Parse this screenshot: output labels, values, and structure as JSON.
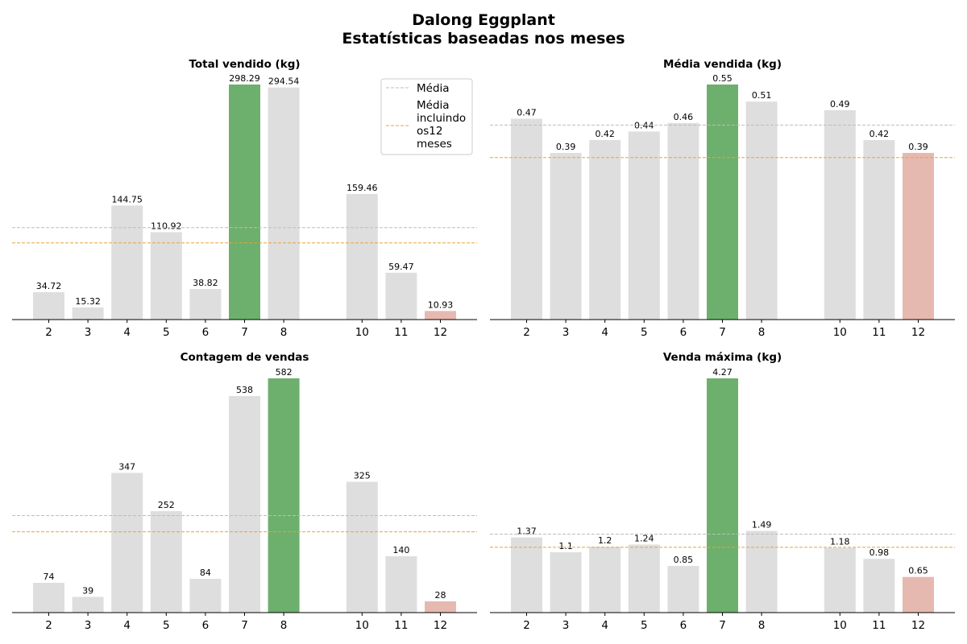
{
  "figure": {
    "title_line1": "Dalong Eggplant",
    "title_line2": "Estatísticas baseadas nos meses"
  },
  "legend": {
    "mean_label": "Média",
    "mean_all_label_lines": [
      "Média",
      "incluindo",
      "os12",
      "meses"
    ]
  },
  "colors": {
    "default_bar": "#dedede",
    "max_bar": "#6daf6d",
    "current_bar": "#e6b9b0",
    "mean_line": "#bdbdbd",
    "mean_all_line": "#e8a33a"
  },
  "chart_data": [
    {
      "type": "bar",
      "title": "Total vendido (kg)",
      "categories": [
        "2",
        "3",
        "4",
        "5",
        "6",
        "7",
        "8",
        "10",
        "11",
        "12"
      ],
      "values": [
        34.72,
        15.32,
        144.75,
        110.92,
        38.82,
        298.29,
        294.54,
        159.46,
        59.47,
        10.93
      ],
      "value_labels": [
        "34.72",
        "15.32",
        "144.75",
        "110.92",
        "38.82",
        "298.29",
        "294.54",
        "159.46",
        "59.47",
        "10.93"
      ],
      "highlight_max": "7",
      "highlight_current": "12",
      "mean": 116.7,
      "mean_all": 97.3,
      "ylim": [
        0,
        298.29
      ],
      "legend": "top-right"
    },
    {
      "type": "bar",
      "title": "Média vendida (kg)",
      "categories": [
        "2",
        "3",
        "4",
        "5",
        "6",
        "7",
        "8",
        "10",
        "11",
        "12"
      ],
      "values": [
        0.47,
        0.39,
        0.42,
        0.44,
        0.46,
        0.55,
        0.51,
        0.49,
        0.42,
        0.39
      ],
      "value_labels": [
        "0.47",
        "0.39",
        "0.42",
        "0.44",
        "0.46",
        "0.55",
        "0.51",
        "0.49",
        "0.42",
        "0.39"
      ],
      "highlight_max": "7",
      "highlight_current": "12",
      "mean": 0.455,
      "mean_all": 0.379,
      "ylim": [
        0,
        0.55
      ]
    },
    {
      "type": "bar",
      "title": "Contagem de vendas",
      "categories": [
        "2",
        "3",
        "4",
        "5",
        "6",
        "7",
        "8",
        "10",
        "11",
        "12"
      ],
      "values": [
        74,
        39,
        347,
        252,
        84,
        538,
        582,
        325,
        140,
        28
      ],
      "value_labels": [
        "74",
        "39",
        "347",
        "252",
        "84",
        "538",
        "582",
        "325",
        "140",
        "28"
      ],
      "highlight_max": "8",
      "highlight_current": "12",
      "mean": 240.9,
      "mean_all": 200.8,
      "ylim": [
        0,
        582
      ]
    },
    {
      "type": "bar",
      "title": "Venda máxima (kg)",
      "categories": [
        "2",
        "3",
        "4",
        "5",
        "6",
        "7",
        "8",
        "10",
        "11",
        "12"
      ],
      "values": [
        1.37,
        1.1,
        1.2,
        1.24,
        0.85,
        4.27,
        1.49,
        1.18,
        0.98,
        0.65
      ],
      "value_labels": [
        "1.37",
        "1.1",
        "1.2",
        "1.24",
        "0.85",
        "4.27",
        "1.49",
        "1.18",
        "0.98",
        "0.65"
      ],
      "highlight_max": "7",
      "highlight_current": "12",
      "mean": 1.43,
      "mean_all": 1.19,
      "ylim": [
        0,
        4.27
      ]
    }
  ]
}
